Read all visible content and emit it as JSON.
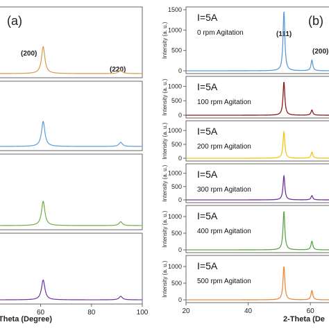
{
  "figure": {
    "left_panel_label": "(a)",
    "right_panel_label": "(b)",
    "left_xlabel": "Theta (Degree)",
    "right_xlabel": "2-Theta (De",
    "left_peak_labels": [
      "(200)",
      "(220)"
    ],
    "right_peak_labels": [
      "(111)",
      "(200)"
    ]
  },
  "chart_data": [
    {
      "type": "line",
      "panel": "(a)",
      "title": "",
      "xlabel": "Theta (Degree)",
      "ylabel": "",
      "xlim": [
        44,
        100
      ],
      "x_ticks": [
        60,
        80,
        100
      ],
      "grid": false,
      "series": [
        {
          "color": "#d39a4c",
          "peaks": [
            {
              "x": 61,
              "height": 0.38,
              "label": "(200)"
            },
            {
              "x": 91.5,
              "height": 0.05,
              "label": "(220)"
            }
          ]
        },
        {
          "color": "#5b9bd5",
          "peaks": [
            {
              "x": 61,
              "height": 0.36
            },
            {
              "x": 91.5,
              "height": 0.06
            }
          ]
        },
        {
          "color": "#70ad47",
          "peaks": [
            {
              "x": 61,
              "height": 0.32
            },
            {
              "x": 91.5,
              "height": 0.05
            }
          ]
        },
        {
          "color": "#7030a0",
          "peaks": [
            {
              "x": 61,
              "height": 0.28
            },
            {
              "x": 91.5,
              "height": 0.05
            }
          ]
        }
      ]
    },
    {
      "type": "line",
      "panel": "(b)",
      "title": "",
      "xlabel": "2-Theta (De",
      "ylabel": "Intensity (a. u.)",
      "xlim": [
        20,
        66
      ],
      "x_ticks": [
        20,
        40,
        60
      ],
      "ylim": [
        0,
        1500
      ],
      "y_ticks": [
        0,
        500,
        1000
      ],
      "grid": false,
      "series": [
        {
          "name": "0 rpm Agitation",
          "current": "I=5A",
          "color": "#5b9bd5",
          "peaks": [
            {
              "x": 51.5,
              "height": 1450,
              "label": "(111)"
            },
            {
              "x": 60.5,
              "height": 260,
              "label": "(200)"
            }
          ],
          "first_tick": 1500
        },
        {
          "name": "100 rpm Agitation",
          "current": "I=5A",
          "color": "#8b1a1a",
          "peaks": [
            {
              "x": 51.5,
              "height": 1150
            },
            {
              "x": 60.5,
              "height": 180
            }
          ],
          "first_tick": 1000
        },
        {
          "name": "200 rpm Agitation",
          "current": "I=5A",
          "color": "#f2c811",
          "peaks": [
            {
              "x": 51.5,
              "height": 950
            },
            {
              "x": 60.5,
              "height": 220
            }
          ],
          "first_tick": 1000
        },
        {
          "name": "300 rpm Agitation",
          "current": "I=5A",
          "color": "#7030a0",
          "peaks": [
            {
              "x": 51.5,
              "height": 900
            },
            {
              "x": 60.5,
              "height": 160
            }
          ],
          "first_tick": 1000
        },
        {
          "name": "400 rpm Agitation",
          "current": "I=5A",
          "color": "#5aa646",
          "peaks": [
            {
              "x": 51.5,
              "height": 1150
            },
            {
              "x": 60.5,
              "height": 260
            }
          ],
          "first_tick": 1000
        },
        {
          "name": "500 rpm Agitation",
          "current": "I=5A",
          "color": "#e98b3c",
          "peaks": [
            {
              "x": 51.5,
              "height": 1000
            },
            {
              "x": 60.5,
              "height": 280
            }
          ],
          "first_tick": 1000
        }
      ]
    }
  ]
}
